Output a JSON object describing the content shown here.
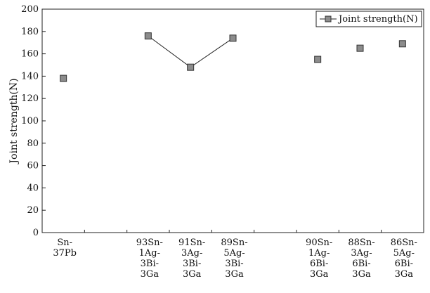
{
  "chart_data": {
    "type": "scatter",
    "title": "",
    "xlabel": "",
    "ylabel": "Joint strength(N)",
    "ylim": [
      0,
      200
    ],
    "y_ticks": [
      "0",
      "20",
      "40",
      "60",
      "80",
      "100",
      "120",
      "140",
      "160",
      "180",
      "200"
    ],
    "grid": false,
    "legend_position": "top-right",
    "categories": [
      [
        "Sn-",
        "37Pb"
      ],
      [],
      [
        "93Sn-",
        "1Ag-",
        "3Bi-",
        "3Ga"
      ],
      [
        "91Sn-",
        "3Ag-",
        "3Bi-",
        "3Ga"
      ],
      [
        "89Sn-",
        "5Ag-",
        "3Bi-",
        "3Ga"
      ],
      [],
      [
        "90Sn-",
        "1Ag-",
        "6Bi-",
        "3Ga"
      ],
      [
        "88Sn-",
        "3Ag-",
        "6Bi-",
        "3Ga"
      ],
      [
        "86Sn-",
        "5Ag-",
        "6Bi-",
        "3Ga"
      ]
    ],
    "series": [
      {
        "name": "Joint strength(N)",
        "marker_color": "#8c8c8c",
        "values": [
          138,
          null,
          176,
          148,
          174,
          null,
          155,
          165,
          169
        ],
        "connected_groups": [
          [
            2,
            3,
            4
          ]
        ]
      }
    ]
  }
}
